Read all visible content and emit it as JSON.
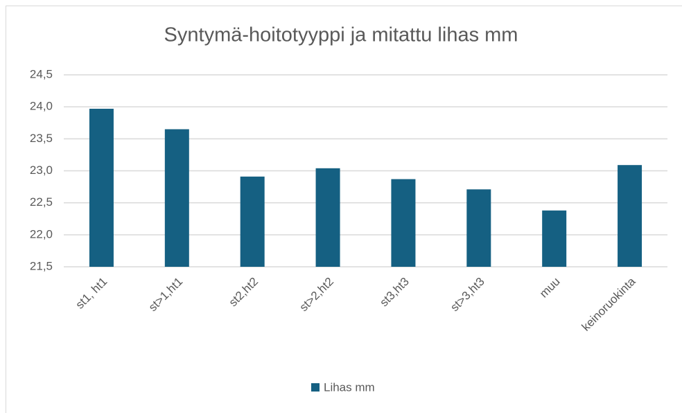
{
  "chart_data": {
    "type": "bar",
    "title": "Syntymä-hoitotyyppi ja mitattu lihas mm",
    "categories": [
      "st1, ht1",
      "st>1,ht1",
      "st2,ht2",
      "st>2,ht2",
      "st3,ht3",
      "st>3,ht3",
      "muu",
      "keinoruokinta"
    ],
    "series": [
      {
        "name": "Lihas mm",
        "color": "#156082",
        "values": [
          23.97,
          23.65,
          22.91,
          23.04,
          22.87,
          22.71,
          22.38,
          23.09
        ]
      }
    ],
    "ylim": [
      21.5,
      24.5
    ],
    "yticks": [
      {
        "value": 21.5,
        "label": "21,5"
      },
      {
        "value": 22,
        "label": "22,0"
      },
      {
        "value": 22.5,
        "label": "22,5"
      },
      {
        "value": 23,
        "label": "23,0"
      },
      {
        "value": 23.5,
        "label": "23,5"
      },
      {
        "value": 24,
        "label": "24,0"
      },
      {
        "value": 24.5,
        "label": "24,5"
      }
    ],
    "grid": true,
    "legend": "bottom"
  }
}
